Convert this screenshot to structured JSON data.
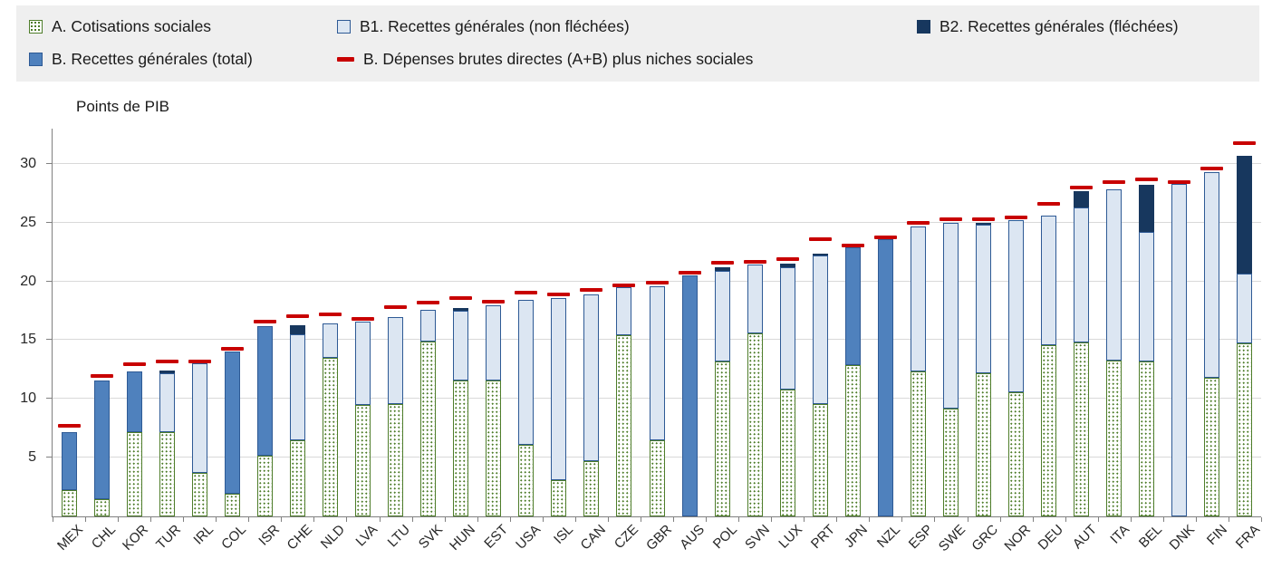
{
  "colors": {
    "legend_bg": "#efefef",
    "a_fill": "#ffffff",
    "a_dot": "#4e7d2a",
    "a_border": "#4e7d2a",
    "b1_fill": "#dce6f2",
    "b1_border": "#2e5a95",
    "b2_fill": "#17375e",
    "b2_border": "#17375e",
    "b_total_fill": "#4f81bd",
    "b_total_border": "#2e5a95",
    "marker_red": "#c80000",
    "grid_line": "#d9d9d9",
    "axis_line": "#808080"
  },
  "legend": {
    "items": [
      {
        "id": "a",
        "label": "A. Cotisations sociales",
        "swatch": "hatched-green"
      },
      {
        "id": "b1",
        "label": "B1. Recettes générales (non fléchées)",
        "swatch": "light-blue"
      },
      {
        "id": "b2",
        "label": "B2. Recettes générales (fléchées)",
        "swatch": "navy"
      },
      {
        "id": "b_total",
        "label": "B. Recettes générales (total)",
        "swatch": "medium-blue"
      },
      {
        "id": "marker",
        "label": "B. Dépenses brutes directes (A+B) plus niches sociales",
        "swatch": "red-dash"
      }
    ]
  },
  "chart_data": {
    "type": "bar",
    "subtype": "stacked-bar-with-marker",
    "title": "",
    "ylabel": "Points de PIB",
    "xlabel": "",
    "ylim": [
      0,
      33
    ],
    "y_ticks": [
      5,
      10,
      15,
      20,
      25,
      30
    ],
    "grid": true,
    "legend_position": "top",
    "series": [
      {
        "key": "a",
        "name": "A. Cotisations sociales"
      },
      {
        "key": "b_total",
        "name": "B. Recettes générales (total)"
      },
      {
        "key": "b1",
        "name": "B1. Recettes générales (non fléchées)"
      },
      {
        "key": "b2",
        "name": "B2. Recettes générales (fléchées)"
      },
      {
        "key": "marker",
        "name": "B. Dépenses brutes directes (A+B) plus niches sociales"
      }
    ],
    "countries": [
      {
        "code": "MEX",
        "a": 2.2,
        "b_total": 5.0,
        "b1": 0,
        "b2": 0,
        "marker": 7.6
      },
      {
        "code": "CHL",
        "a": 1.5,
        "b_total": 10.1,
        "b1": 0,
        "b2": 0,
        "marker": 11.9
      },
      {
        "code": "KOR",
        "a": 7.2,
        "b_total": 5.1,
        "b1": 0,
        "b2": 0,
        "marker": 12.9
      },
      {
        "code": "TUR",
        "a": 7.2,
        "b_total": 0,
        "b1": 5.0,
        "b2": 0.2,
        "marker": 13.1
      },
      {
        "code": "IRL",
        "a": 3.7,
        "b_total": 0,
        "b1": 9.3,
        "b2": 0,
        "marker": 13.1
      },
      {
        "code": "COL",
        "a": 1.9,
        "b_total": 12.1,
        "b1": 0,
        "b2": 0,
        "marker": 14.2
      },
      {
        "code": "ISR",
        "a": 5.2,
        "b_total": 11.0,
        "b1": 0,
        "b2": 0,
        "marker": 16.5
      },
      {
        "code": "CHE",
        "a": 6.5,
        "b_total": 0,
        "b1": 9.0,
        "b2": 0.8,
        "marker": 17.0
      },
      {
        "code": "NLD",
        "a": 13.5,
        "b_total": 0,
        "b1": 2.9,
        "b2": 0,
        "marker": 17.1
      },
      {
        "code": "LVA",
        "a": 9.5,
        "b_total": 0,
        "b1": 7.1,
        "b2": 0,
        "marker": 16.7
      },
      {
        "code": "LTU",
        "a": 9.6,
        "b_total": 0,
        "b1": 7.4,
        "b2": 0,
        "marker": 17.7
      },
      {
        "code": "SVK",
        "a": 14.9,
        "b_total": 0,
        "b1": 2.7,
        "b2": 0,
        "marker": 18.1
      },
      {
        "code": "HUN",
        "a": 11.6,
        "b_total": 0,
        "b1": 5.9,
        "b2": 0.2,
        "marker": 18.5
      },
      {
        "code": "EST",
        "a": 11.6,
        "b_total": 0,
        "b1": 6.4,
        "b2": 0,
        "marker": 18.2
      },
      {
        "code": "USA",
        "a": 6.1,
        "b_total": 0,
        "b1": 12.3,
        "b2": 0,
        "marker": 19.0
      },
      {
        "code": "ISL",
        "a": 3.1,
        "b_total": 0,
        "b1": 15.5,
        "b2": 0,
        "marker": 18.8
      },
      {
        "code": "CAN",
        "a": 4.7,
        "b_total": 0,
        "b1": 14.2,
        "b2": 0,
        "marker": 19.2
      },
      {
        "code": "CZE",
        "a": 15.4,
        "b_total": 0,
        "b1": 4.1,
        "b2": 0,
        "marker": 19.6
      },
      {
        "code": "GBR",
        "a": 6.5,
        "b_total": 0,
        "b1": 13.1,
        "b2": 0,
        "marker": 19.8
      },
      {
        "code": "AUS",
        "a": 0,
        "b_total": 20.5,
        "b1": 0,
        "b2": 0,
        "marker": 20.7
      },
      {
        "code": "POL",
        "a": 13.2,
        "b_total": 0,
        "b1": 7.7,
        "b2": 0.3,
        "marker": 21.5
      },
      {
        "code": "SVN",
        "a": 15.6,
        "b_total": 0,
        "b1": 5.8,
        "b2": 0,
        "marker": 21.6
      },
      {
        "code": "LUX",
        "a": 10.8,
        "b_total": 0,
        "b1": 10.4,
        "b2": 0.3,
        "marker": 21.8
      },
      {
        "code": "PRT",
        "a": 9.6,
        "b_total": 0,
        "b1": 12.6,
        "b2": 0.2,
        "marker": 23.5
      },
      {
        "code": "JPN",
        "a": 12.9,
        "b_total": 10.0,
        "b1": 0,
        "b2": 0,
        "marker": 23.0
      },
      {
        "code": "NZL",
        "a": 0,
        "b_total": 23.6,
        "b1": 0,
        "b2": 0,
        "marker": 23.7
      },
      {
        "code": "ESP",
        "a": 12.3,
        "b_total": 0,
        "b1": 12.4,
        "b2": 0,
        "marker": 24.9
      },
      {
        "code": "SWE",
        "a": 9.2,
        "b_total": 0,
        "b1": 15.8,
        "b2": 0,
        "marker": 25.2
      },
      {
        "code": "GRC",
        "a": 12.2,
        "b_total": 0,
        "b1": 12.6,
        "b2": 0.2,
        "marker": 25.2
      },
      {
        "code": "NOR",
        "a": 10.6,
        "b_total": 0,
        "b1": 14.6,
        "b2": 0,
        "marker": 25.4
      },
      {
        "code": "DEU",
        "a": 14.6,
        "b_total": 0,
        "b1": 11.0,
        "b2": 0,
        "marker": 26.5
      },
      {
        "code": "AUT",
        "a": 14.8,
        "b_total": 0,
        "b1": 11.5,
        "b2": 1.4,
        "marker": 27.9
      },
      {
        "code": "ITA",
        "a": 13.3,
        "b_total": 0,
        "b1": 14.5,
        "b2": 0,
        "marker": 28.4
      },
      {
        "code": "BEL",
        "a": 13.2,
        "b_total": 0,
        "b1": 11.0,
        "b2": 4.0,
        "marker": 28.6
      },
      {
        "code": "DNK",
        "a": 0,
        "b_total": 0,
        "b1": 28.3,
        "b2": 0,
        "marker": 28.4
      },
      {
        "code": "FIN",
        "a": 11.8,
        "b_total": 0,
        "b1": 17.5,
        "b2": 0,
        "marker": 29.5
      },
      {
        "code": "FRA",
        "a": 14.7,
        "b_total": 0,
        "b1": 6.0,
        "b2": 10.0,
        "marker": 31.7
      }
    ]
  }
}
